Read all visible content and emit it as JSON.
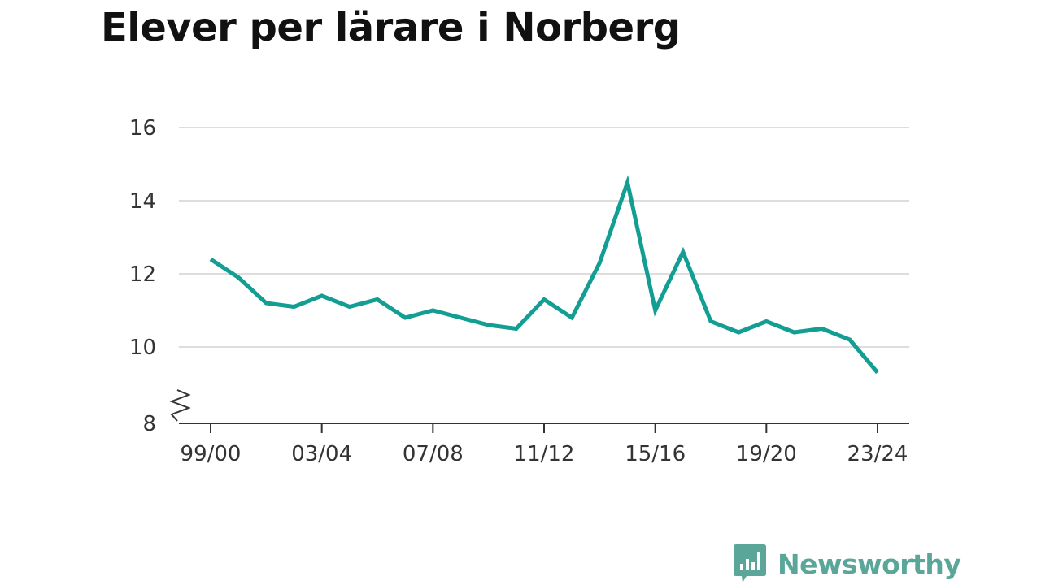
{
  "title": "Elever per lärare i Norberg",
  "brand": {
    "name": "Newsworthy",
    "color": "#5aa79a",
    "icon": "newsworthy-logo-icon"
  },
  "colors": {
    "line": "#139e93",
    "grid": "#dddddd",
    "axis": "#333333"
  },
  "chart_data": {
    "type": "line",
    "title": "Elever per lärare i Norberg",
    "xlabel": "",
    "ylabel": "",
    "ylim": [
      8,
      16
    ],
    "yticks": [
      "8",
      "10",
      "12",
      "14",
      "16"
    ],
    "y_axis_break": true,
    "grid": true,
    "legend": "none",
    "xticks": [
      "99/00",
      "03/04",
      "07/08",
      "11/12",
      "15/16",
      "19/20",
      "23/24"
    ],
    "categories": [
      "99/00",
      "00/01",
      "01/02",
      "02/03",
      "03/04",
      "04/05",
      "05/06",
      "06/07",
      "07/08",
      "08/09",
      "09/10",
      "10/11",
      "11/12",
      "12/13",
      "13/14",
      "14/15",
      "15/16",
      "16/17",
      "17/18",
      "18/19",
      "19/20",
      "20/21",
      "21/22",
      "22/23",
      "23/24"
    ],
    "series": [
      {
        "values": [
          12.4,
          11.9,
          11.2,
          11.1,
          11.4,
          11.1,
          11.3,
          10.8,
          11.0,
          10.8,
          10.6,
          10.5,
          11.3,
          10.8,
          12.3,
          14.5,
          11.0,
          12.6,
          10.7,
          10.4,
          10.7,
          10.4,
          10.5,
          10.2,
          9.3
        ]
      }
    ]
  }
}
